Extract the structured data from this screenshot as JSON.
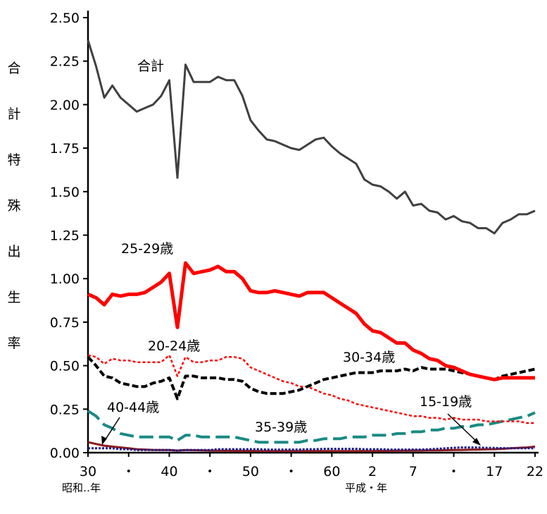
{
  "chart_data": {
    "type": "line",
    "title": "",
    "ylabel": "合計特殊出生率",
    "xlabel_left": "昭和‥年",
    "xlabel_right": "平成・年",
    "ylim": [
      0,
      2.5
    ],
    "yticks": [
      "0.00",
      "0.25",
      "0.50",
      "0.75",
      "1.00",
      "1.25",
      "1.50",
      "1.75",
      "2.00",
      "2.25",
      "2.50"
    ],
    "xtick_labels": [
      "30",
      "・",
      "40",
      "・",
      "50",
      "・",
      "60",
      "2",
      "7",
      "・",
      "17",
      "22"
    ],
    "x_years": [
      1955,
      1956,
      1957,
      1958,
      1959,
      1960,
      1961,
      1962,
      1963,
      1964,
      1965,
      1966,
      1967,
      1968,
      1969,
      1970,
      1971,
      1972,
      1973,
      1974,
      1975,
      1976,
      1977,
      1978,
      1979,
      1980,
      1981,
      1982,
      1983,
      1984,
      1985,
      1986,
      1987,
      1988,
      1989,
      1990,
      1991,
      1992,
      1993,
      1994,
      1995,
      1996,
      1997,
      1998,
      1999,
      2000,
      2001,
      2002,
      2003,
      2004,
      2005,
      2006,
      2007,
      2008,
      2009,
      2010
    ],
    "series": [
      {
        "name": "合計",
        "color": "#404040",
        "dash": "",
        "width": 3,
        "values": [
          2.37,
          2.22,
          2.04,
          2.11,
          2.04,
          2.0,
          1.96,
          1.98,
          2.0,
          2.05,
          2.14,
          1.58,
          2.23,
          2.13,
          2.13,
          2.13,
          2.16,
          2.14,
          2.14,
          2.05,
          1.91,
          1.85,
          1.8,
          1.79,
          1.77,
          1.75,
          1.74,
          1.77,
          1.8,
          1.81,
          1.76,
          1.72,
          1.69,
          1.66,
          1.57,
          1.54,
          1.53,
          1.5,
          1.46,
          1.5,
          1.42,
          1.43,
          1.39,
          1.38,
          1.34,
          1.36,
          1.33,
          1.32,
          1.29,
          1.29,
          1.26,
          1.32,
          1.34,
          1.37,
          1.37,
          1.39
        ]
      },
      {
        "name": "25-29歳",
        "color": "#ff0000",
        "dash": "",
        "width": 5,
        "values": [
          0.91,
          0.89,
          0.85,
          0.91,
          0.9,
          0.91,
          0.91,
          0.92,
          0.95,
          0.98,
          1.03,
          0.72,
          1.09,
          1.03,
          1.04,
          1.05,
          1.07,
          1.04,
          1.04,
          1.0,
          0.93,
          0.92,
          0.92,
          0.93,
          0.92,
          0.91,
          0.9,
          0.92,
          0.92,
          0.92,
          0.89,
          0.86,
          0.83,
          0.8,
          0.74,
          0.7,
          0.69,
          0.66,
          0.63,
          0.63,
          0.59,
          0.57,
          0.54,
          0.53,
          0.5,
          0.49,
          0.47,
          0.45,
          0.44,
          0.43,
          0.42,
          0.43,
          0.43,
          0.43,
          0.43,
          0.43
        ]
      },
      {
        "name": "20-24歳",
        "color": "#ff0000",
        "dash": "4,3",
        "width": 2.5,
        "values": [
          0.56,
          0.55,
          0.51,
          0.54,
          0.53,
          0.53,
          0.52,
          0.52,
          0.52,
          0.52,
          0.56,
          0.44,
          0.55,
          0.52,
          0.52,
          0.53,
          0.53,
          0.55,
          0.55,
          0.54,
          0.49,
          0.47,
          0.45,
          0.43,
          0.41,
          0.4,
          0.38,
          0.38,
          0.36,
          0.34,
          0.33,
          0.31,
          0.3,
          0.28,
          0.27,
          0.26,
          0.25,
          0.24,
          0.23,
          0.22,
          0.21,
          0.21,
          0.2,
          0.2,
          0.19,
          0.2,
          0.19,
          0.19,
          0.19,
          0.18,
          0.18,
          0.18,
          0.18,
          0.18,
          0.17,
          0.17
        ]
      },
      {
        "name": "30-34歳",
        "color": "#000000",
        "dash": "9,4",
        "width": 4,
        "values": [
          0.55,
          0.5,
          0.44,
          0.43,
          0.4,
          0.39,
          0.38,
          0.38,
          0.4,
          0.41,
          0.43,
          0.31,
          0.44,
          0.44,
          0.43,
          0.43,
          0.43,
          0.42,
          0.42,
          0.41,
          0.37,
          0.35,
          0.34,
          0.34,
          0.34,
          0.35,
          0.36,
          0.38,
          0.4,
          0.42,
          0.43,
          0.44,
          0.45,
          0.46,
          0.46,
          0.46,
          0.47,
          0.47,
          0.47,
          0.48,
          0.47,
          0.49,
          0.48,
          0.48,
          0.48,
          0.47,
          0.46,
          0.45,
          0.44,
          0.43,
          0.42,
          0.44,
          0.45,
          0.46,
          0.47,
          0.48
        ]
      },
      {
        "name": "35-39歳",
        "color": "#1a8a84",
        "dash": "20,8",
        "width": 4,
        "values": [
          0.24,
          0.21,
          0.16,
          0.14,
          0.11,
          0.1,
          0.09,
          0.09,
          0.09,
          0.09,
          0.09,
          0.07,
          0.1,
          0.1,
          0.09,
          0.09,
          0.09,
          0.09,
          0.09,
          0.08,
          0.07,
          0.06,
          0.06,
          0.06,
          0.06,
          0.06,
          0.06,
          0.07,
          0.07,
          0.08,
          0.08,
          0.08,
          0.09,
          0.09,
          0.09,
          0.1,
          0.1,
          0.1,
          0.11,
          0.11,
          0.12,
          0.12,
          0.13,
          0.13,
          0.14,
          0.14,
          0.15,
          0.15,
          0.16,
          0.16,
          0.17,
          0.18,
          0.19,
          0.2,
          0.21,
          0.23
        ]
      },
      {
        "name": "15-19歳",
        "color": "#1a1a8c",
        "dash": "3,2",
        "width": 3,
        "values": [
          0.025,
          0.025,
          0.025,
          0.025,
          0.02,
          0.02,
          0.015,
          0.015,
          0.015,
          0.015,
          0.015,
          0.012,
          0.015,
          0.015,
          0.015,
          0.015,
          0.02,
          0.02,
          0.02,
          0.02,
          0.02,
          0.02,
          0.018,
          0.018,
          0.018,
          0.018,
          0.018,
          0.02,
          0.02,
          0.022,
          0.022,
          0.022,
          0.022,
          0.022,
          0.02,
          0.02,
          0.02,
          0.018,
          0.018,
          0.018,
          0.018,
          0.018,
          0.02,
          0.022,
          0.025,
          0.028,
          0.03,
          0.03,
          0.03,
          0.028,
          0.027,
          0.026,
          0.025,
          0.025,
          0.025,
          0.025
        ]
      },
      {
        "name": "40-44歳",
        "color": "#8b1a1a",
        "dash": "",
        "width": 3,
        "values": [
          0.06,
          0.05,
          0.04,
          0.035,
          0.03,
          0.025,
          0.02,
          0.018,
          0.016,
          0.015,
          0.015,
          0.012,
          0.015,
          0.014,
          0.013,
          0.012,
          0.011,
          0.011,
          0.01,
          0.01,
          0.01,
          0.009,
          0.009,
          0.009,
          0.009,
          0.009,
          0.009,
          0.009,
          0.009,
          0.009,
          0.009,
          0.009,
          0.009,
          0.009,
          0.009,
          0.009,
          0.01,
          0.01,
          0.011,
          0.011,
          0.012,
          0.012,
          0.013,
          0.013,
          0.014,
          0.015,
          0.016,
          0.017,
          0.018,
          0.019,
          0.02,
          0.022,
          0.025,
          0.028,
          0.03,
          0.035
        ]
      }
    ]
  }
}
